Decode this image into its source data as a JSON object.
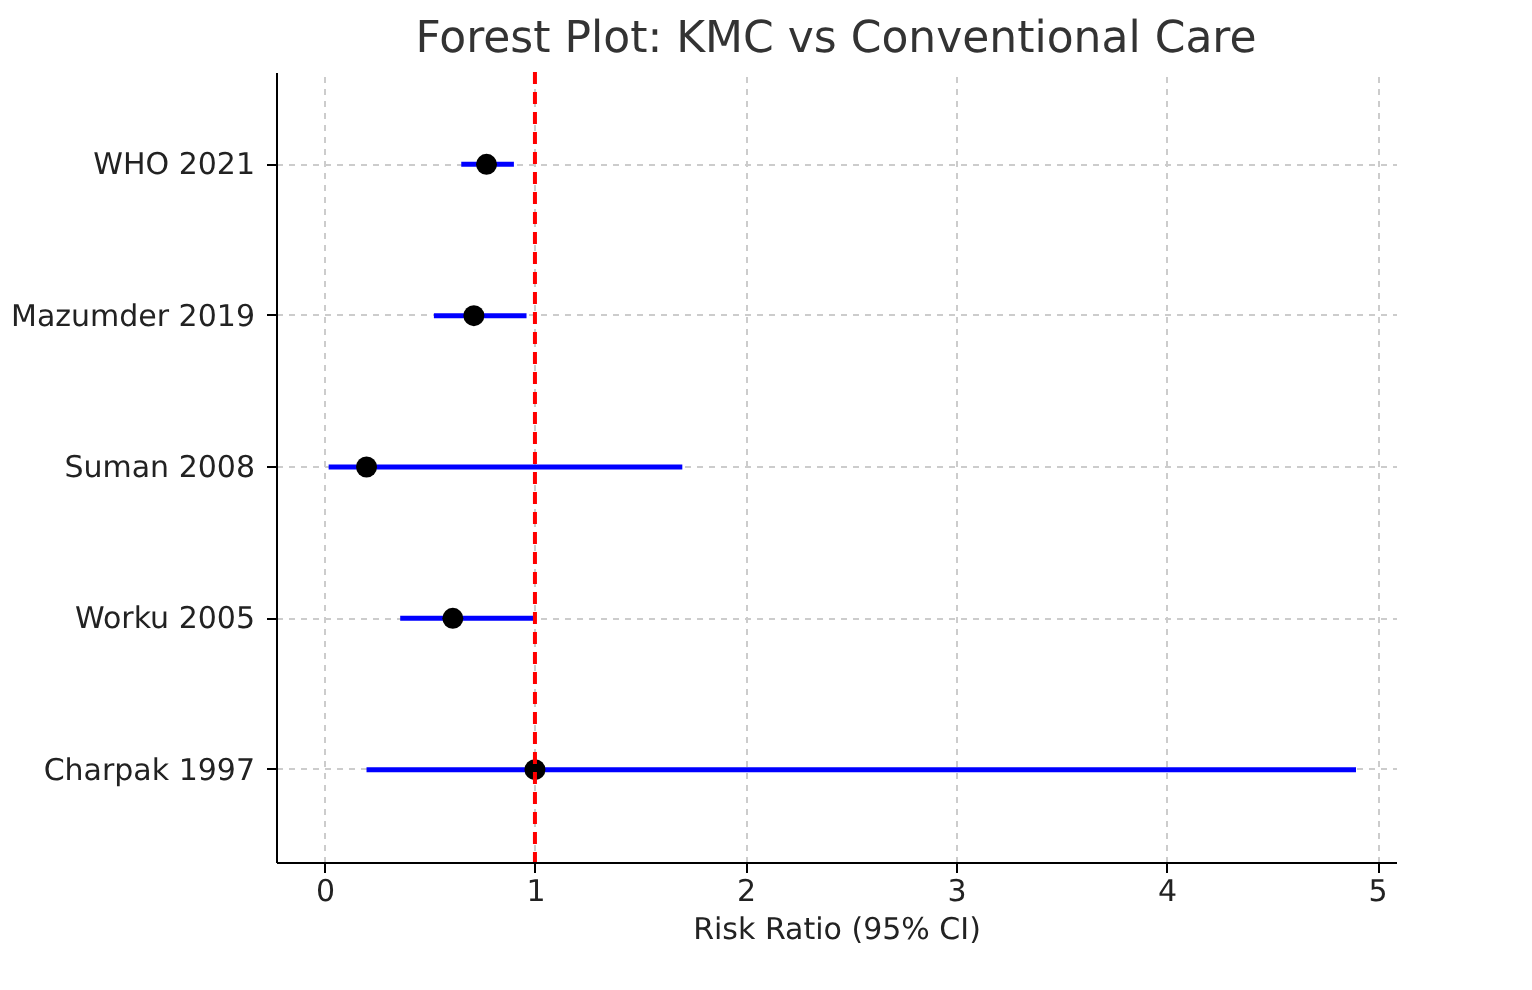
{
  "chart_data": {
    "type": "scatter",
    "orientation": "horizontal",
    "title": "Forest Plot: KMC vs Conventional Care",
    "xlabel": "Risk Ratio (95% CI)",
    "categories": [
      "WHO 2021",
      "Mazumder 2019",
      "Suman 2008",
      "Worku 2005",
      "Charpak 1997"
    ],
    "series": [
      {
        "color": "#000000",
        "values": [
          0.77,
          0.71,
          0.2,
          0.61,
          1.0
        ],
        "errors": [
          [
            0.65,
            0.9
          ],
          [
            0.52,
            0.96
          ],
          [
            0.02,
            1.7
          ],
          [
            0.36,
            1.0
          ],
          [
            0.2,
            4.9
          ]
        ]
      }
    ],
    "xlim": [
      -0.23,
      5.09
    ],
    "xticks": [
      0,
      1,
      2,
      3,
      4,
      5
    ],
    "grid": true,
    "marker": "circle",
    "ref_lines": [
      {
        "axis": "x",
        "value": 1,
        "color": "#ff0000",
        "line_style": "dashed"
      }
    ]
  }
}
